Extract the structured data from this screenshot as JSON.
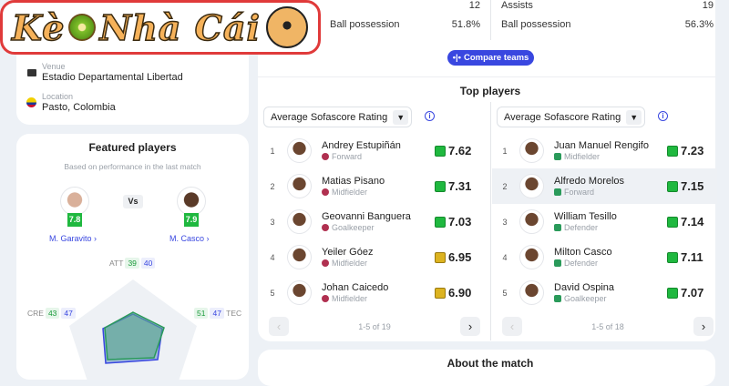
{
  "logo": {
    "text_left": "Kè",
    "text_middle": "Nhà Cái",
    "icons": [
      "kiwi-icon",
      "soccer-ball-icon"
    ]
  },
  "stats": {
    "left": [
      {
        "label": "",
        "value": "12"
      },
      {
        "label": "Ball possession",
        "value": "51.8%"
      }
    ],
    "right": [
      {
        "label": "Assists",
        "value": "19"
      },
      {
        "label": "Ball possession",
        "value": "56.3%"
      }
    ],
    "compare_label": "Compare teams"
  },
  "venue": {
    "venue_label": "Venue",
    "venue": "Estadio Departamental Libertad",
    "location_label": "Location",
    "location": "Pasto, Colombia"
  },
  "featured": {
    "title": "Featured players",
    "subtitle": "Based on performance in the last match",
    "vs": "Vs",
    "p1": {
      "name": "M. Garavito",
      "rating": "7.8"
    },
    "p2": {
      "name": "M. Casco",
      "rating": "7.9"
    },
    "radar": {
      "ATT": {
        "label": "ATT",
        "p1": "39",
        "p2": "40"
      },
      "CRE": {
        "label": "CRE",
        "p1": "43",
        "p2": "47"
      },
      "TEC": {
        "label": "TEC",
        "p1": "51",
        "p2": "47"
      }
    },
    "colors": {
      "p1": "#2a9a5a",
      "p2": "#3947e0"
    }
  },
  "top_players": {
    "title": "Top players",
    "left": {
      "dropdown": "Average Sofascore Rating",
      "pagination": "1-5 of 19",
      "players": [
        {
          "rank": "1",
          "name": "Andrey Estupiñán",
          "pos": "Forward",
          "rating": "7.62",
          "color": "green"
        },
        {
          "rank": "2",
          "name": "Matias Pisano",
          "pos": "Midfielder",
          "rating": "7.31",
          "color": "green"
        },
        {
          "rank": "3",
          "name": "Geovanni Banguera",
          "pos": "Goalkeeper",
          "rating": "7.03",
          "color": "green"
        },
        {
          "rank": "4",
          "name": "Yeiler Góez",
          "pos": "Midfielder",
          "rating": "6.95",
          "color": "yellow"
        },
        {
          "rank": "5",
          "name": "Johan Caicedo",
          "pos": "Midfielder",
          "rating": "6.90",
          "color": "yellow"
        }
      ]
    },
    "right": {
      "dropdown": "Average Sofascore Rating",
      "pagination": "1-5 of 18",
      "players": [
        {
          "rank": "1",
          "name": "Juan Manuel Rengifo",
          "pos": "Midfielder",
          "rating": "7.23",
          "color": "green"
        },
        {
          "rank": "2",
          "name": "Alfredo Morelos",
          "pos": "Forward",
          "rating": "7.15",
          "color": "green"
        },
        {
          "rank": "3",
          "name": "William Tesillo",
          "pos": "Defender",
          "rating": "7.14",
          "color": "green"
        },
        {
          "rank": "4",
          "name": "Milton Casco",
          "pos": "Defender",
          "rating": "7.11",
          "color": "green"
        },
        {
          "rank": "5",
          "name": "David Ospina",
          "pos": "Goalkeeper",
          "rating": "7.07",
          "color": "green"
        }
      ]
    }
  },
  "about": {
    "title": "About the match"
  }
}
